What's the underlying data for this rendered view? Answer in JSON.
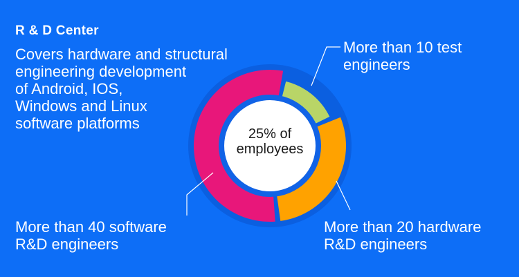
{
  "title": "R & D Center",
  "description_lines": [
    "Covers hardware and structural",
    "engineering development",
    "of Android, IOS,",
    "Windows and Linux",
    "software platforms"
  ],
  "center_label_lines": [
    "25% of",
    "employees"
  ],
  "chart_data": {
    "type": "pie",
    "title": "",
    "slices": [
      {
        "label_lines": [
          "More than 10 test",
          "engineers"
        ],
        "value": 15,
        "color": "#b9d567"
      },
      {
        "label_lines": [
          "More than 20 hardware",
          "R&D engineers"
        ],
        "value": 30,
        "color": "#ffa200"
      },
      {
        "label_lines": [
          "More than 40 software",
          "R&D engineers"
        ],
        "value": 55,
        "color": "#e8177a"
      }
    ],
    "background_color": "#0d6ef7"
  }
}
